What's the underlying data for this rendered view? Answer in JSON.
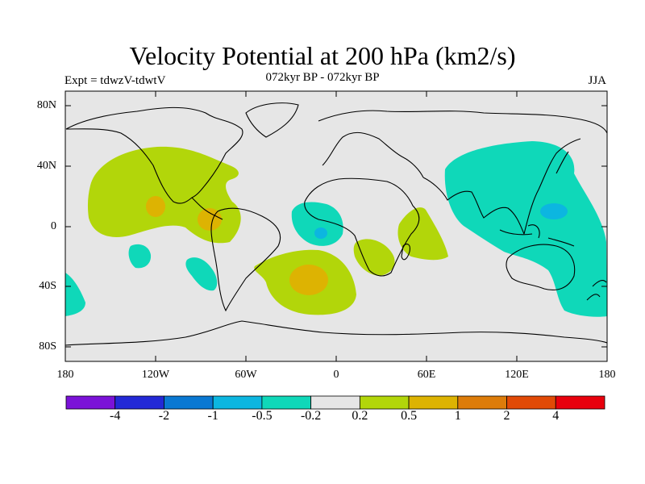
{
  "title": "Velocity Potential at 200 hPa (km2/s)",
  "left_label": "Expt = tdwzV-tdwtV",
  "center_label": "072kyr BP - 072kyr BP",
  "right_label": "JJA",
  "lat_ticks": [
    "80N",
    "40N",
    "0",
    "40S",
    "80S"
  ],
  "lon_ticks": [
    "180",
    "120W",
    "60W",
    "0",
    "60E",
    "120E",
    "180"
  ],
  "colorbar": {
    "colors": [
      "#7b12d8",
      "#2329d6",
      "#0a78d2",
      "#0cb6e0",
      "#0fd8b9",
      "#e6e6e6",
      "#b2d60a",
      "#ddb302",
      "#dd7c0a",
      "#e14a06",
      "#e8000d"
    ],
    "labels": [
      "-4",
      "-2",
      "-1",
      "-0.5",
      "-0.2",
      "0.2",
      "0.5",
      "1",
      "2",
      "4"
    ]
  }
}
